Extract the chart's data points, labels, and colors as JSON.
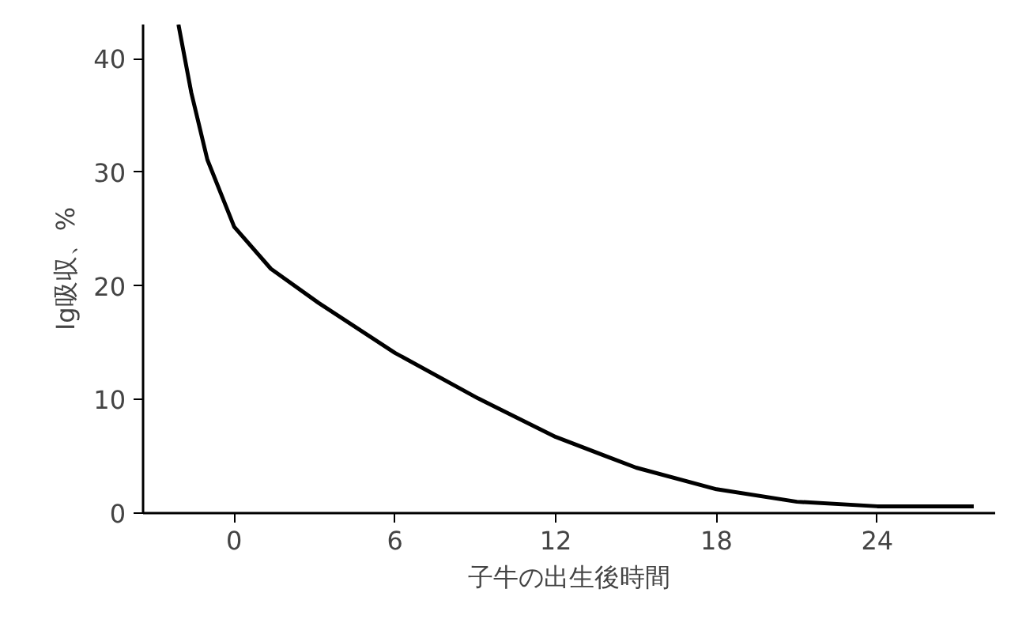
{
  "chart_data": {
    "type": "line",
    "xlabel": "子牛の出生後時間",
    "ylabel": "Ig吸収、%",
    "x": [
      -2.08,
      -1.6,
      -1.0,
      0,
      1.37,
      3.15,
      6,
      9.1,
      12,
      15,
      18,
      21,
      24,
      27.6
    ],
    "series": [
      {
        "color": "#000000",
        "values": [
          43.0,
          37.0,
          31.1,
          25.2,
          21.5,
          18.5,
          14.1,
          10.1,
          6.7,
          4.0,
          2.1,
          1.0,
          0.6,
          0.6
        ]
      }
    ],
    "xlim": [
      -3.4,
      28.4
    ],
    "ylim": [
      0,
      43
    ],
    "xticks": [
      0,
      6,
      12,
      18,
      24
    ],
    "yticks": [
      0,
      10,
      20,
      30,
      40
    ],
    "grid": false,
    "marker": "none",
    "line_style": "solid"
  }
}
